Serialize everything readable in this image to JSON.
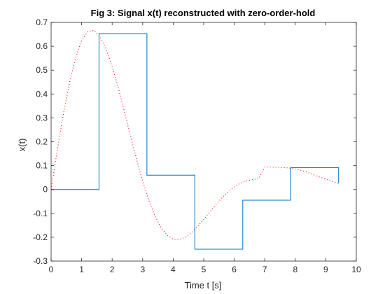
{
  "chart_data": {
    "type": "line",
    "title": "Fig 3: Signal x(t) reconstructed with zero-order-hold",
    "xlabel": "Time t [s]",
    "ylabel": "x(t)",
    "xlim": [
      0,
      10
    ],
    "ylim": [
      -0.3,
      0.7
    ],
    "xticks": [
      0,
      1,
      2,
      3,
      4,
      5,
      6,
      7,
      8,
      9,
      10
    ],
    "yticks": [
      -0.3,
      -0.2,
      -0.1,
      0,
      0.1,
      0.2,
      0.3,
      0.4,
      0.5,
      0.6,
      0.7
    ],
    "xtick_labels": [
      "0",
      "1",
      "2",
      "3",
      "4",
      "5",
      "6",
      "7",
      "8",
      "9",
      "10"
    ],
    "ytick_labels": [
      "-0.3",
      "-0.2",
      "-0.1",
      "0",
      "0.1",
      "0.2",
      "0.3",
      "0.4",
      "0.5",
      "0.6",
      "0.7"
    ],
    "grid": false,
    "series": [
      {
        "style": "dotted",
        "color": "#ff0000",
        "x": [
          0,
          0.2,
          0.4,
          0.6,
          0.8,
          1.0,
          1.2,
          1.4,
          1.6,
          1.8,
          2.0,
          2.2,
          2.4,
          2.6,
          2.8,
          3.0,
          3.2,
          3.4,
          3.6,
          3.8,
          4.0,
          4.2,
          4.4,
          4.6,
          4.8,
          5.0,
          5.2,
          5.4,
          5.6,
          5.8,
          6.0,
          6.2,
          6.4,
          6.6,
          6.8,
          7.0,
          7.2,
          7.4,
          7.6,
          7.8,
          8.0,
          8.2,
          8.4,
          8.6,
          8.8,
          9.0,
          9.2,
          9.42
        ],
        "y": [
          0,
          0.163,
          0.315,
          0.445,
          0.55,
          0.623,
          0.661,
          0.667,
          0.641,
          0.589,
          0.515,
          0.426,
          0.327,
          0.225,
          0.126,
          0.035,
          -0.045,
          -0.11,
          -0.159,
          -0.191,
          -0.208,
          -0.21,
          -0.2,
          -0.181,
          -0.155,
          -0.125,
          -0.094,
          -0.063,
          -0.035,
          -0.01,
          0.011,
          0.026,
          0.036,
          0.042,
          0.045,
          0.094,
          0.094,
          0.093,
          0.092,
          0.09,
          0.086,
          0.08,
          0.072,
          0.062,
          0.052,
          0.043,
          0.034,
          0.026
        ]
      },
      {
        "style": "stairs",
        "color": "#0072bd",
        "x": [
          0,
          1.57,
          1.57,
          3.14,
          3.14,
          4.71,
          4.71,
          6.28,
          6.28,
          7.85,
          7.85,
          9.42,
          9.42
        ],
        "y": [
          0,
          0,
          0.653,
          0.653,
          0.06,
          0.06,
          -0.25,
          -0.25,
          -0.045,
          -0.045,
          0.092,
          0.092,
          0.026
        ]
      }
    ]
  }
}
